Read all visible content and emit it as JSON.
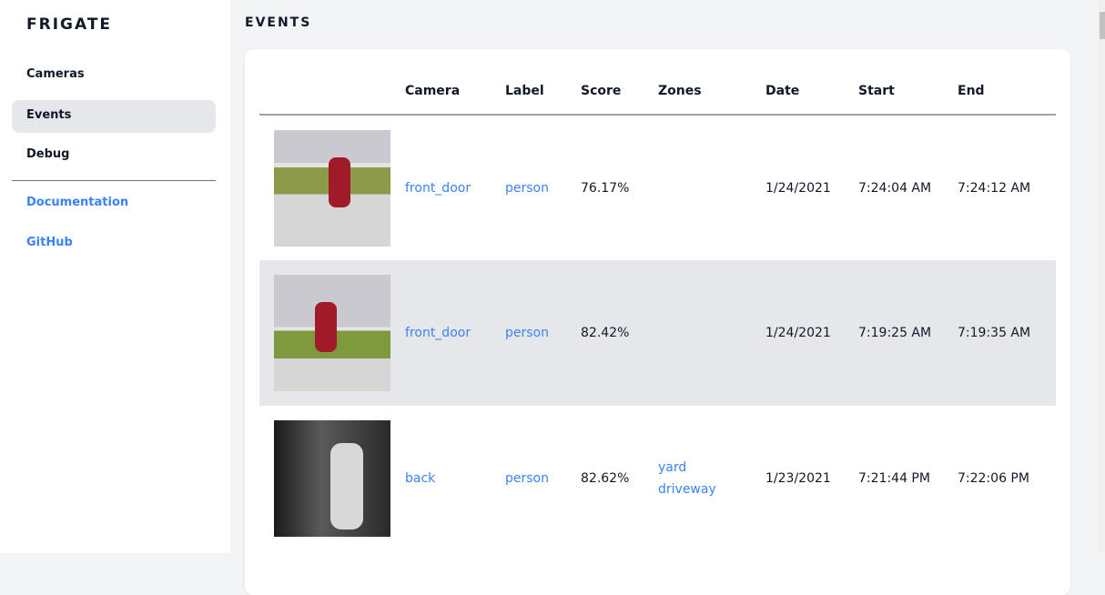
{
  "sidebar": {
    "brand": "FRIGATE",
    "items": [
      {
        "label": "Cameras"
      },
      {
        "label": "Events",
        "active": true
      },
      {
        "label": "Debug"
      }
    ],
    "links": [
      {
        "label": "Documentation"
      },
      {
        "label": "GitHub"
      }
    ]
  },
  "main": {
    "title": "EVENTS"
  },
  "table": {
    "headers": [
      "",
      "Camera",
      "Label",
      "Score",
      "Zones",
      "Date",
      "Start",
      "End"
    ],
    "rows": [
      {
        "camera": "front_door",
        "label": "person",
        "score": "76.17%",
        "zones": [
          "",
          ""
        ],
        "date": "1/24/2021",
        "start": "7:24:04 AM",
        "end": "7:24:12 AM"
      },
      {
        "camera": "front_door",
        "label": "person",
        "score": "82.42%",
        "zones": [
          "",
          ""
        ],
        "date": "1/24/2021",
        "start": "7:19:25 AM",
        "end": "7:19:35 AM"
      },
      {
        "camera": "back",
        "label": "person",
        "score": "82.62%",
        "zones": [
          "yard",
          "driveway"
        ],
        "date": "1/23/2021",
        "start": "7:21:44 PM",
        "end": "7:22:06 PM"
      }
    ]
  },
  "colors": {
    "accent": "#3b82f6",
    "active_bg": "#e5e7eb"
  }
}
